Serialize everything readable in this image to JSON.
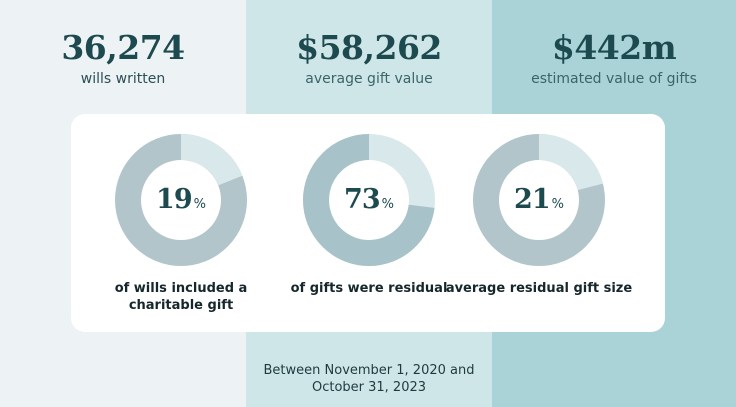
{
  "stats": [
    {
      "value": "36,274",
      "label": "wills written"
    },
    {
      "value": "$58,262",
      "label": "average gift value"
    },
    {
      "value": "$442m",
      "label": "estimated value of gifts"
    }
  ],
  "donuts": [
    {
      "percent": 19,
      "percent_text": "19",
      "symbol": "%",
      "caption_line1": "of wills included a",
      "caption_line2": "charitable gift"
    },
    {
      "percent": 73,
      "percent_text": "73",
      "symbol": "%",
      "caption_line1": "of gifts were residual",
      "caption_line2": ""
    },
    {
      "percent": 21,
      "percent_text": "21",
      "symbol": "%",
      "caption_line1": "average residual gift size",
      "caption_line2": ""
    }
  ],
  "footer": {
    "line1": "Between November 1, 2020 and",
    "line2": "October 31, 2023"
  },
  "colors": {
    "band_left": "#edf2f4",
    "band_middle": "#cfe6e8",
    "band_right": "#a9d3d7",
    "heading": "#1d4a4f",
    "donut_light": "#d9e8ea",
    "donut_dark": "#b1c5ca",
    "donut_dark_alt": "#a7c2c8"
  }
}
